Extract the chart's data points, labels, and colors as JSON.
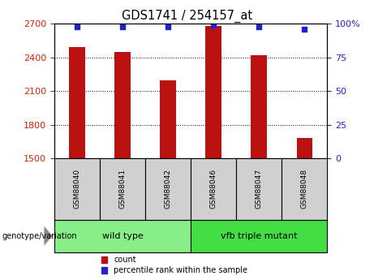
{
  "title": "GDS1741 / 254157_at",
  "samples": [
    "GSM88040",
    "GSM88041",
    "GSM88042",
    "GSM88046",
    "GSM88047",
    "GSM88048"
  ],
  "counts": [
    2490,
    2450,
    2195,
    2680,
    2420,
    1680
  ],
  "percentile_ranks": [
    98,
    98,
    98,
    99,
    98,
    96
  ],
  "ylim_left": [
    1500,
    2700
  ],
  "ylim_right": [
    0,
    100
  ],
  "yticks_left": [
    1500,
    1800,
    2100,
    2400,
    2700
  ],
  "yticks_right": [
    0,
    25,
    50,
    75,
    100
  ],
  "bar_color": "#bb1111",
  "dot_color": "#2222cc",
  "grid_color": "#000000",
  "groups": [
    {
      "label": "wild type",
      "indices": [
        0,
        1,
        2
      ],
      "color": "#88ee88"
    },
    {
      "label": "vfb triple mutant",
      "indices": [
        3,
        4,
        5
      ],
      "color": "#44dd44"
    }
  ],
  "group_label": "genotype/variation",
  "legend_items": [
    {
      "label": "count",
      "color": "#bb1111"
    },
    {
      "label": "percentile rank within the sample",
      "color": "#2222cc"
    }
  ],
  "bar_width": 0.35,
  "tick_label_color_left": "#cc2200",
  "tick_label_color_right": "#2222cc",
  "sample_box_color": "#d0d0d0",
  "arrow_color": "#888888"
}
